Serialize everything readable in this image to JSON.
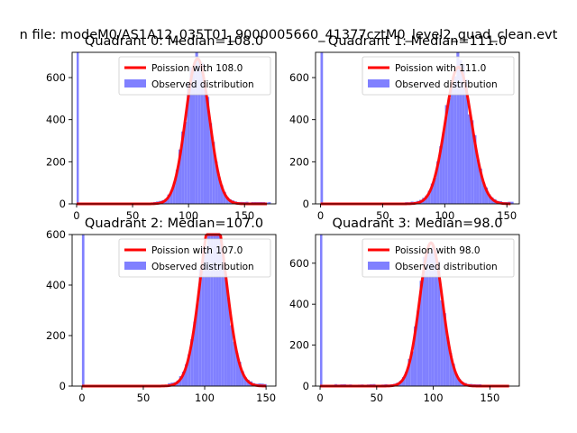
{
  "suptitle": "n file: modeM0/AS1A12_035T01_9000005660_41377cztM0_level2_quad_clean.evt",
  "colors": {
    "poisson": "#ff0000",
    "observed": "#8080ff",
    "axis": "#000000"
  },
  "chart_data": [
    {
      "type": "histogram",
      "title": "Quadrant 0: Median=108.0",
      "xlim": [
        -4,
        178
      ],
      "ylim": [
        0,
        720
      ],
      "xticks": [
        0,
        50,
        100,
        150
      ],
      "yticks": [
        0,
        200,
        400,
        600
      ],
      "legend": {
        "placement": "top-right",
        "entries": [
          "Poission with 108.0",
          "Observed distribution"
        ]
      },
      "poisson_mean": 108,
      "poisson_peak": 690,
      "curve_range": [
        0,
        170
      ],
      "spike": {
        "x": 1,
        "value": 720
      },
      "hist_range": [
        66,
        172
      ],
      "hist_peak": 695,
      "bin_width": 2.5,
      "sigma": 10.5
    },
    {
      "type": "histogram",
      "title": "Quadrant 1: Median=111.0",
      "xlim": [
        -4,
        160
      ],
      "ylim": [
        0,
        720
      ],
      "xticks": [
        0,
        50,
        100,
        150
      ],
      "yticks": [
        0,
        200,
        400,
        600
      ],
      "legend": {
        "placement": "top-right",
        "entries": [
          "Poission with 111.0",
          "Observed distribution"
        ]
      },
      "poisson_mean": 111,
      "poisson_peak": 650,
      "curve_range": [
        0,
        153
      ],
      "spike": {
        "x": 1,
        "value": 720
      },
      "hist_range": [
        68,
        154
      ],
      "hist_peak": 655,
      "bin_width": 2.3,
      "sigma": 10.5
    },
    {
      "type": "histogram",
      "title": "Quadrant 2: Median=107.0",
      "xlim": [
        -8,
        158
      ],
      "ylim": [
        0,
        600
      ],
      "xticks": [
        0,
        50,
        100,
        150
      ],
      "yticks": [
        0,
        200,
        400,
        600
      ],
      "legend": {
        "placement": "top-right",
        "entries": [
          "Poission with 107.0",
          "Observed distribution"
        ]
      },
      "poisson_mean": 107,
      "poisson_peak": 700,
      "curve_range": [
        0,
        150
      ],
      "spike": {
        "x": 1,
        "value": 600
      },
      "hist_range": [
        70,
        150
      ],
      "hist_peak": 690,
      "bin_width": 2.3,
      "sigma": 10.5
    },
    {
      "type": "histogram",
      "title": "Quadrant 3: Median=98.0",
      "xlim": [
        -4,
        176
      ],
      "ylim": [
        0,
        740
      ],
      "xticks": [
        0,
        50,
        100,
        150
      ],
      "yticks": [
        0,
        200,
        400,
        600
      ],
      "legend": {
        "placement": "top-right",
        "entries": [
          "Poission with 98.0",
          "Observed distribution"
        ]
      },
      "poisson_mean": 98,
      "poisson_peak": 700,
      "curve_range": [
        0,
        167
      ],
      "spike": {
        "x": 1,
        "value": 740
      },
      "hist_range": [
        10,
        140
      ],
      "hist_peak": 700,
      "bin_width": 2.6,
      "sigma": 10.0
    }
  ]
}
